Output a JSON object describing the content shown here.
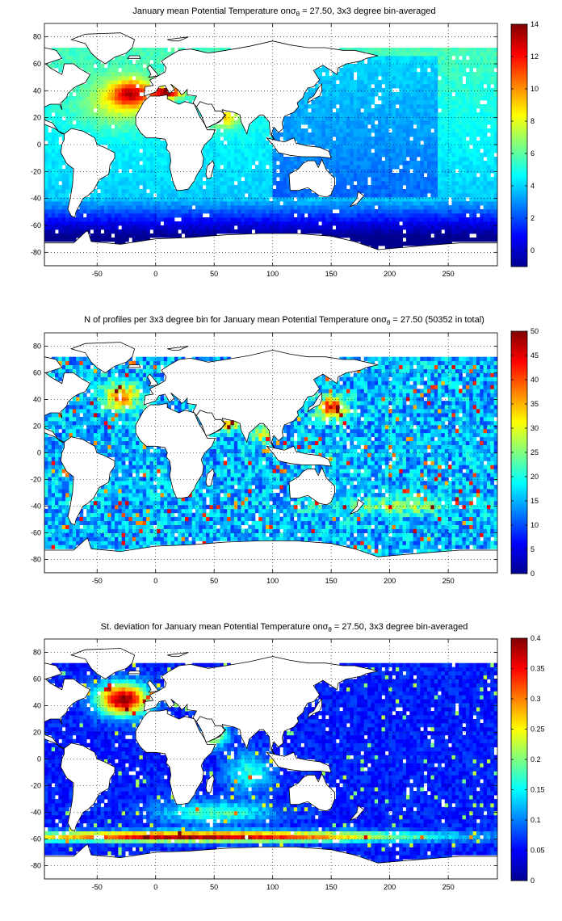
{
  "colormap": [
    "#00008f",
    "#0000ff",
    "#0080ff",
    "#00ffff",
    "#80ff80",
    "#ffff00",
    "#ff8000",
    "#ff0000",
    "#800000"
  ],
  "land_color": "#ffffff",
  "no_data_color": "#ffffff",
  "chart_data": [
    {
      "type": "heatmap",
      "title_parts": [
        "January mean Potential Temperature on",
        "σ",
        "θ",
        " = 27.50, 3x3 degree bin-averaged"
      ],
      "xlim": [
        -95,
        292
      ],
      "ylim": [
        -90,
        90
      ],
      "xticks": [
        -50,
        0,
        50,
        100,
        150,
        200,
        250
      ],
      "yticks": [
        -80,
        -60,
        -40,
        -20,
        0,
        20,
        40,
        60,
        80
      ],
      "grid": true,
      "colorbar": {
        "min": -1,
        "max": 14,
        "ticks": [
          0,
          2,
          4,
          6,
          8,
          10,
          12,
          14
        ],
        "position": "right"
      },
      "field": "temperature"
    },
    {
      "type": "heatmap",
      "title_parts": [
        "N of profiles per 3x3 degree bin for January mean Potential Temperature on",
        "σ",
        "θ",
        " = 27.50 (50352 in total)"
      ],
      "total_profiles": 50352,
      "xlim": [
        -95,
        292
      ],
      "ylim": [
        -90,
        90
      ],
      "xticks": [
        -50,
        0,
        50,
        100,
        150,
        200,
        250
      ],
      "yticks": [
        -80,
        -60,
        -40,
        -20,
        0,
        20,
        40,
        60,
        80
      ],
      "grid": true,
      "colorbar": {
        "min": 0,
        "max": 50,
        "ticks": [
          0,
          5,
          10,
          15,
          20,
          25,
          30,
          35,
          40,
          45,
          50
        ],
        "position": "right"
      },
      "field": "count"
    },
    {
      "type": "heatmap",
      "title_parts": [
        "St. deviation for January mean Potential Temperature on",
        "σ",
        "θ",
        " = 27.50, 3x3 degree bin-averaged"
      ],
      "xlim": [
        -95,
        292
      ],
      "ylim": [
        -90,
        90
      ],
      "xticks": [
        -50,
        0,
        50,
        100,
        150,
        200,
        250
      ],
      "yticks": [
        -80,
        -60,
        -40,
        -20,
        0,
        20,
        40,
        60,
        80
      ],
      "grid": true,
      "colorbar": {
        "min": 0,
        "max": 0.4,
        "ticks": [
          0,
          0.05,
          0.1,
          0.15,
          0.2,
          0.25,
          0.3,
          0.35,
          0.4
        ],
        "position": "right"
      },
      "field": "stdev"
    }
  ],
  "land_masks": [
    {
      "name": "north-america",
      "points": [
        [
          -168,
          66
        ],
        [
          -160,
          71
        ],
        [
          -140,
          70
        ],
        [
          -125,
          70
        ],
        [
          -110,
          73
        ],
        [
          -95,
          72
        ],
        [
          -85,
          70
        ],
        [
          -80,
          64
        ],
        [
          -94,
          60
        ],
        [
          -90,
          57
        ],
        [
          -80,
          52
        ],
        [
          -78,
          60
        ],
        [
          -70,
          60
        ],
        [
          -64,
          56
        ],
        [
          -56,
          52
        ],
        [
          -60,
          46
        ],
        [
          -66,
          44
        ],
        [
          -70,
          42
        ],
        [
          -75,
          38
        ],
        [
          -76,
          35
        ],
        [
          -81,
          31
        ],
        [
          -80,
          26
        ],
        [
          -82,
          30
        ],
        [
          -90,
          30
        ],
        [
          -97,
          27
        ],
        [
          -97,
          22
        ],
        [
          -94,
          18
        ],
        [
          -88,
          16
        ],
        [
          -83,
          10
        ],
        [
          -78,
          8
        ],
        [
          -80,
          8
        ],
        [
          -86,
          12
        ],
        [
          -92,
          14
        ],
        [
          -100,
          17
        ],
        [
          -105,
          20
        ],
        [
          -110,
          24
        ],
        [
          -112,
          30
        ],
        [
          -117,
          32
        ],
        [
          -121,
          35
        ],
        [
          -124,
          40
        ],
        [
          -124,
          48
        ],
        [
          -130,
          55
        ],
        [
          -140,
          60
        ],
        [
          -150,
          60
        ],
        [
          -160,
          58
        ],
        [
          -165,
          62
        ]
      ]
    },
    {
      "name": "south-america",
      "points": [
        [
          -78,
          8
        ],
        [
          -72,
          12
        ],
        [
          -62,
          10
        ],
        [
          -52,
          5
        ],
        [
          -50,
          0
        ],
        [
          -44,
          -2
        ],
        [
          -35,
          -6
        ],
        [
          -35,
          -10
        ],
        [
          -39,
          -15
        ],
        [
          -40,
          -22
        ],
        [
          -48,
          -26
        ],
        [
          -53,
          -34
        ],
        [
          -58,
          -38
        ],
        [
          -62,
          -40
        ],
        [
          -65,
          -45
        ],
        [
          -68,
          -50
        ],
        [
          -69,
          -54
        ],
        [
          -72,
          -53
        ],
        [
          -75,
          -48
        ],
        [
          -73,
          -40
        ],
        [
          -71,
          -30
        ],
        [
          -70,
          -18
        ],
        [
          -76,
          -14
        ],
        [
          -81,
          -6
        ],
        [
          -80,
          0
        ],
        [
          -78,
          4
        ]
      ]
    },
    {
      "name": "greenland",
      "points": [
        [
          -72,
          78
        ],
        [
          -60,
          82
        ],
        [
          -30,
          83
        ],
        [
          -18,
          78
        ],
        [
          -20,
          72
        ],
        [
          -25,
          68
        ],
        [
          -35,
          65
        ],
        [
          -43,
          60
        ],
        [
          -50,
          64
        ],
        [
          -55,
          68
        ],
        [
          -60,
          75
        ]
      ]
    },
    {
      "name": "eurasia",
      "points": [
        [
          -10,
          36
        ],
        [
          -9,
          43
        ],
        [
          -2,
          44
        ],
        [
          -5,
          48
        ],
        [
          2,
          51
        ],
        [
          8,
          54
        ],
        [
          9,
          57
        ],
        [
          5,
          62
        ],
        [
          12,
          66
        ],
        [
          20,
          70
        ],
        [
          30,
          71
        ],
        [
          45,
          68
        ],
        [
          60,
          70
        ],
        [
          80,
          73
        ],
        [
          100,
          77
        ],
        [
          115,
          74
        ],
        [
          130,
          72
        ],
        [
          145,
          72
        ],
        [
          160,
          70
        ],
        [
          170,
          70
        ],
        [
          180,
          68
        ],
        [
          190,
          66
        ],
        [
          180,
          64
        ],
        [
          175,
          62
        ],
        [
          163,
          60
        ],
        [
          156,
          57
        ],
        [
          155,
          52
        ],
        [
          143,
          59
        ],
        [
          135,
          55
        ],
        [
          140,
          48
        ],
        [
          135,
          43
        ],
        [
          130,
          42
        ],
        [
          127,
          38
        ],
        [
          126,
          35
        ],
        [
          121,
          31
        ],
        [
          122,
          28
        ],
        [
          118,
          24
        ],
        [
          110,
          21
        ],
        [
          108,
          16
        ],
        [
          109,
          12
        ],
        [
          105,
          9
        ],
        [
          101,
          13
        ],
        [
          99,
          8
        ],
        [
          103,
          1
        ],
        [
          98,
          8
        ],
        [
          97,
          17
        ],
        [
          92,
          22
        ],
        [
          89,
          22
        ],
        [
          80,
          15
        ],
        [
          78,
          8
        ],
        [
          73,
          17
        ],
        [
          72,
          22
        ],
        [
          67,
          24
        ],
        [
          61,
          25
        ],
        [
          57,
          26
        ],
        [
          58,
          23
        ],
        [
          60,
          22
        ],
        [
          55,
          17
        ],
        [
          45,
          13
        ],
        [
          43,
          15
        ],
        [
          39,
          22
        ],
        [
          35,
          28
        ],
        [
          32,
          31
        ],
        [
          35,
          36
        ],
        [
          27,
          37
        ],
        [
          27,
          41
        ],
        [
          24,
          38
        ],
        [
          22,
          37
        ],
        [
          20,
          40
        ],
        [
          13,
          45
        ],
        [
          16,
          41
        ],
        [
          12,
          38
        ],
        [
          8,
          44
        ],
        [
          3,
          43
        ],
        [
          0,
          39
        ]
      ]
    },
    {
      "name": "africa",
      "points": [
        [
          -17,
          21
        ],
        [
          -17,
          15
        ],
        [
          -13,
          9
        ],
        [
          -8,
          5
        ],
        [
          0,
          5
        ],
        [
          8,
          4
        ],
        [
          10,
          0
        ],
        [
          9,
          -3
        ],
        [
          12,
          -6
        ],
        [
          13,
          -12
        ],
        [
          12,
          -17
        ],
        [
          15,
          -28
        ],
        [
          18,
          -34
        ],
        [
          22,
          -34
        ],
        [
          28,
          -33
        ],
        [
          33,
          -27
        ],
        [
          35,
          -23
        ],
        [
          40,
          -16
        ],
        [
          41,
          -10
        ],
        [
          39,
          -5
        ],
        [
          42,
          0
        ],
        [
          48,
          5
        ],
        [
          51,
          11
        ],
        [
          44,
          11
        ],
        [
          42,
          15
        ],
        [
          37,
          22
        ],
        [
          33,
          30
        ],
        [
          25,
          32
        ],
        [
          20,
          30
        ],
        [
          15,
          32
        ],
        [
          10,
          34
        ],
        [
          10,
          37
        ],
        [
          3,
          36
        ],
        [
          -5,
          36
        ],
        [
          -10,
          32
        ]
      ]
    },
    {
      "name": "arabia",
      "points": [
        [
          43,
          13
        ],
        [
          45,
          13
        ],
        [
          52,
          16
        ],
        [
          57,
          19
        ],
        [
          59,
          22
        ],
        [
          56,
          25
        ],
        [
          51,
          25
        ],
        [
          48,
          30
        ],
        [
          44,
          30
        ],
        [
          38,
          32
        ],
        [
          35,
          28
        ],
        [
          39,
          22
        ]
      ]
    },
    {
      "name": "australia",
      "points": [
        [
          114,
          -22
        ],
        [
          115,
          -34
        ],
        [
          122,
          -34
        ],
        [
          130,
          -32
        ],
        [
          135,
          -35
        ],
        [
          140,
          -38
        ],
        [
          146,
          -39
        ],
        [
          150,
          -37
        ],
        [
          153,
          -30
        ],
        [
          153,
          -25
        ],
        [
          146,
          -19
        ],
        [
          142,
          -11
        ],
        [
          139,
          -17
        ],
        [
          136,
          -12
        ],
        [
          130,
          -12
        ],
        [
          126,
          -14
        ],
        [
          122,
          -18
        ]
      ]
    },
    {
      "name": "antarctica",
      "points": [
        [
          -95,
          -73
        ],
        [
          -70,
          -73
        ],
        [
          -60,
          -65
        ],
        [
          -58,
          -64
        ],
        [
          -55,
          -72
        ],
        [
          -30,
          -74
        ],
        [
          0,
          -70
        ],
        [
          30,
          -69
        ],
        [
          60,
          -67
        ],
        [
          90,
          -66
        ],
        [
          120,
          -66
        ],
        [
          150,
          -68
        ],
        [
          170,
          -72
        ],
        [
          190,
          -78
        ],
        [
          230,
          -75
        ],
        [
          260,
          -73
        ],
        [
          292,
          -73
        ],
        [
          292,
          -90
        ],
        [
          -95,
          -90
        ]
      ]
    },
    {
      "name": "indonesia",
      "points": [
        [
          95,
          5
        ],
        [
          100,
          0
        ],
        [
          105,
          -6
        ],
        [
          115,
          -8
        ],
        [
          125,
          -9
        ],
        [
          140,
          -9
        ],
        [
          150,
          -10
        ],
        [
          148,
          -5
        ],
        [
          140,
          -2
        ],
        [
          130,
          -1
        ],
        [
          120,
          1
        ],
        [
          118,
          5
        ],
        [
          110,
          2
        ],
        [
          104,
          3
        ]
      ]
    },
    {
      "name": "japan",
      "points": [
        [
          130,
          31
        ],
        [
          135,
          34
        ],
        [
          140,
          36
        ],
        [
          142,
          40
        ],
        [
          142,
          45
        ],
        [
          139,
          42
        ],
        [
          135,
          36
        ],
        [
          131,
          34
        ]
      ]
    },
    {
      "name": "uk",
      "points": [
        [
          -6,
          50
        ],
        [
          2,
          51
        ],
        [
          1,
          53
        ],
        [
          -2,
          56
        ],
        [
          -5,
          59
        ],
        [
          -7,
          57
        ],
        [
          -5,
          54
        ],
        [
          -4,
          52
        ]
      ]
    },
    {
      "name": "madagascar",
      "points": [
        [
          44,
          -25
        ],
        [
          47,
          -25
        ],
        [
          50,
          -15
        ],
        [
          49,
          -12
        ],
        [
          44,
          -16
        ],
        [
          43,
          -22
        ]
      ]
    },
    {
      "name": "new-zealand",
      "points": [
        [
          166,
          -46
        ],
        [
          172,
          -44
        ],
        [
          178,
          -38
        ],
        [
          173,
          -35
        ],
        [
          172,
          -40
        ],
        [
          167,
          -45
        ]
      ]
    },
    {
      "name": "iceland",
      "points": [
        [
          -24,
          64
        ],
        [
          -13,
          64
        ],
        [
          -14,
          66
        ],
        [
          -22,
          66
        ]
      ]
    },
    {
      "name": "svalbard",
      "points": [
        [
          10,
          78
        ],
        [
          28,
          80
        ],
        [
          20,
          77
        ],
        [
          14,
          77
        ]
      ]
    }
  ]
}
